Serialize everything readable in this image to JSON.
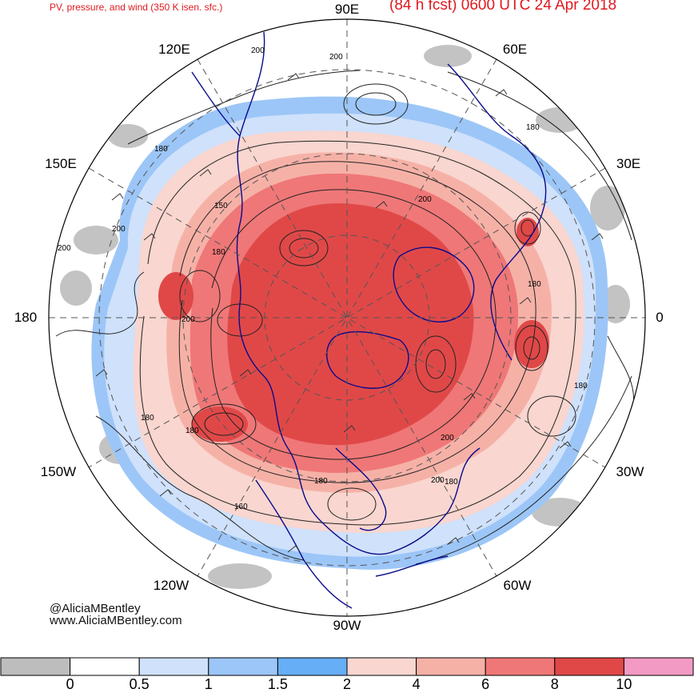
{
  "header": {
    "left_title": "PV, pressure, and wind (350 K isen. sfc.)",
    "right_title": "(84 h fcst) 0600 UTC 24 Apr 2018"
  },
  "credits": {
    "handle": "@AliciaMBentley",
    "website": "www.AliciaMBentley.com"
  },
  "map": {
    "projection": "north-polar-stereographic",
    "longitude_labels": {
      "n": "90E",
      "ne_top": "60E",
      "nw_top": "120E",
      "ne_mid": "30E",
      "nw_mid": "150E",
      "e": "0",
      "w": "180",
      "se_mid": "30W",
      "sw_mid": "150W",
      "se_bot": "60W",
      "sw_bot": "120W",
      "s": "90W"
    },
    "contour_labels": [
      "200",
      "200",
      "180",
      "180",
      "150",
      "200",
      "200",
      "180",
      "200",
      "180",
      "180",
      "180",
      "200",
      "180",
      "180",
      "160",
      "200",
      "200",
      "180"
    ],
    "colors": {
      "title_red": "#e0191e",
      "coast_navy": "#0a0a8c",
      "contour_black": "#222222"
    }
  },
  "colorbar": {
    "bins": [
      {
        "color": "#bdbdbd"
      },
      {
        "color": "#ffffff"
      },
      {
        "color": "#cfe1fb"
      },
      {
        "color": "#9cc6f7"
      },
      {
        "color": "#66aef5"
      },
      {
        "color": "#f9d6cf"
      },
      {
        "color": "#f6b1a7"
      },
      {
        "color": "#ef7777"
      },
      {
        "color": "#e04848"
      },
      {
        "color": "#f39ac4"
      }
    ],
    "tick_labels": [
      "0",
      "0.5",
      "1",
      "1.5",
      "2",
      "4",
      "6",
      "8",
      "10"
    ]
  }
}
